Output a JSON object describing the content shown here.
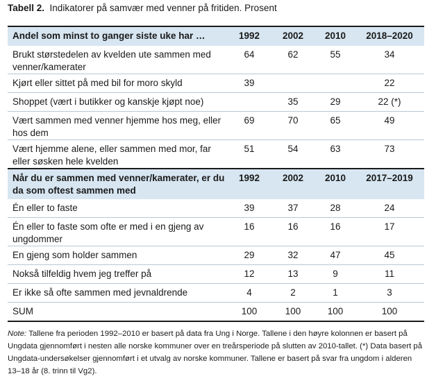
{
  "caption": {
    "label": "Tabell 2.",
    "title": "Indikatorer på samvær med venner på fritiden. Prosent"
  },
  "section1": {
    "header": [
      "Andel som minst to ganger siste uke har …",
      "1992",
      "2002",
      "2010",
      "2018–2020"
    ],
    "rows": [
      [
        "Brukt størstedelen av kvelden ute sammen med venner/kamerater",
        "64",
        "62",
        "55",
        "34"
      ],
      [
        "Kjørt eller sittet på med bil for moro skyld",
        "39",
        "",
        "",
        "22"
      ],
      [
        "Shoppet (vært i butikker og kanskje kjøpt noe)",
        "",
        "35",
        "29",
        "22 (*)"
      ],
      [
        "Vært sammen med venner hjemme hos meg, eller hos dem",
        "69",
        "70",
        "65",
        "49"
      ],
      [
        "Vært hjemme alene, eller sammen med mor, far eller søsken hele kvelden",
        "51",
        "54",
        "63",
        "73"
      ]
    ]
  },
  "section2": {
    "header": [
      "Når du er sammen med venner/kamerater, er du da som oftest sammen med",
      "1992",
      "2002",
      "2010",
      "2017–2019"
    ],
    "rows": [
      [
        "Én eller to faste",
        "39",
        "37",
        "28",
        "24"
      ],
      [
        "Én eller to faste som ofte er med i en gjeng av ungdommer",
        "16",
        "16",
        "16",
        "17"
      ],
      [
        "En gjeng som holder sammen",
        "29",
        "32",
        "47",
        "45"
      ],
      [
        "Nokså tilfeldig hvem jeg treffer på",
        "12",
        "13",
        "9",
        "11"
      ],
      [
        "Er ikke så ofte sammen med jevnaldrende",
        "4",
        "2",
        "1",
        "3"
      ],
      [
        "SUM",
        "100",
        "100",
        "100",
        "100"
      ]
    ]
  },
  "note": {
    "label": "Note:",
    "text": "Tallene fra perioden 1992–2010 er basert på data fra Ung i Norge. Tallene i den høyre kolonnen er basert på Ungdata gjennomført i nesten alle norske kommuner over en treårsperiode på slutten av 2010-tallet. (*) Data basert på Ungdata-undersøkelser gjennomført i et utvalg av norske kommuner. Tallene er basert på svar fra ungdom i alderen 13–18 år (8. trinn til Vg2)."
  }
}
